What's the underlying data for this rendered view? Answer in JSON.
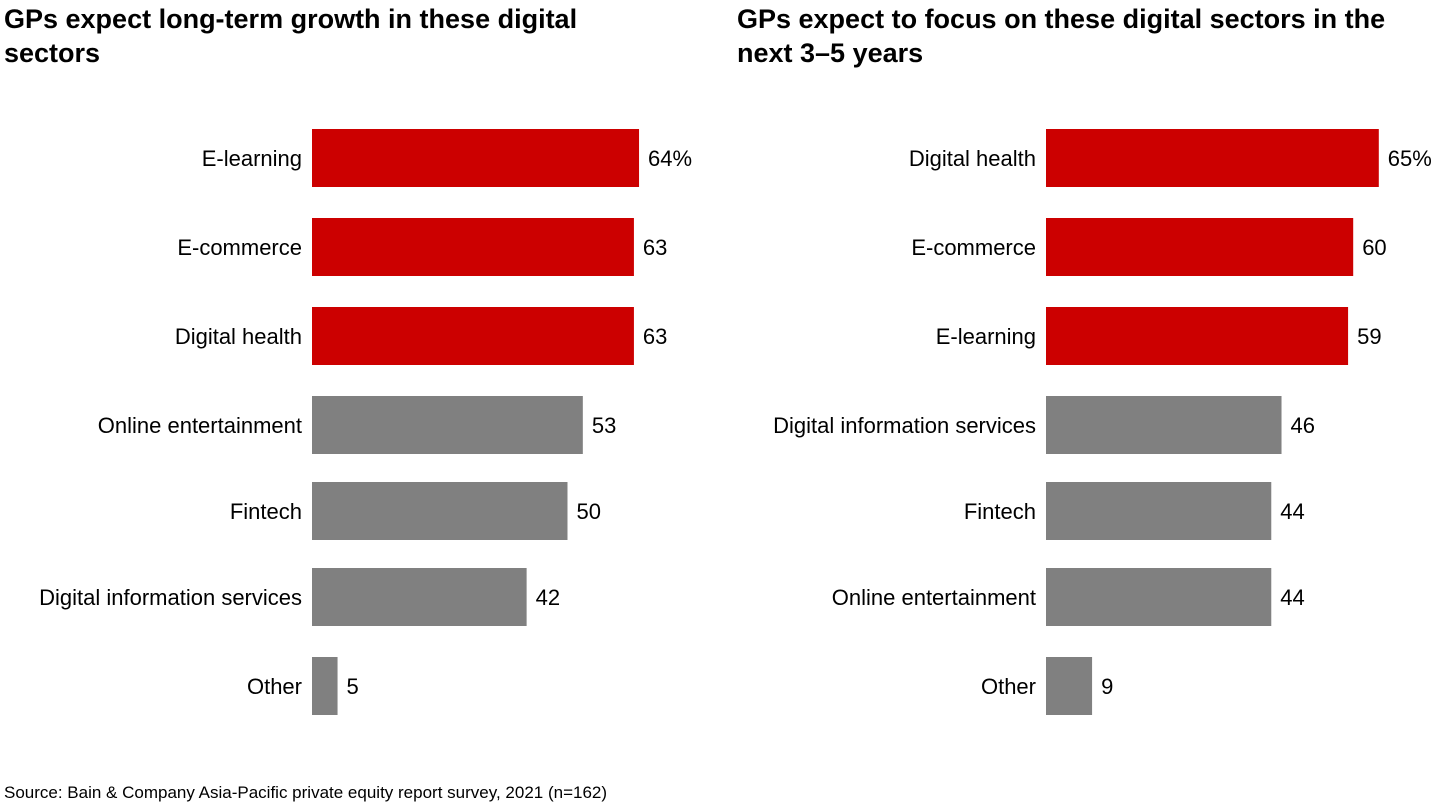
{
  "source": "Source: Bain & Company Asia-Pacific private equity report survey, 2021 (n=162)",
  "colors": {
    "highlight": "#cc0000",
    "other": "#808080"
  },
  "chart_data": [
    {
      "type": "bar",
      "orientation": "horizontal",
      "title": "GPs expect long-term growth in these digital sectors",
      "categories": [
        "E-learning",
        "E-commerce",
        "Digital health",
        "Online entertainment",
        "Fintech",
        "Digital information services",
        "Other"
      ],
      "values": [
        64,
        63,
        63,
        53,
        50,
        42,
        5
      ],
      "value_labels": [
        "64%",
        "63",
        "63",
        "53",
        "50",
        "42",
        "5"
      ],
      "highlighted": [
        true,
        true,
        true,
        false,
        false,
        false,
        false
      ],
      "unit": "%",
      "xlabel": "",
      "ylabel": "",
      "xlim": [
        0,
        100
      ],
      "grid": false,
      "legend": "none"
    },
    {
      "type": "bar",
      "orientation": "horizontal",
      "title": "GPs expect to focus on these digital sectors in the next 3–5 years",
      "categories": [
        "Digital health",
        "E-commerce",
        "E-learning",
        "Digital information services",
        "Fintech",
        "Online entertainment",
        "Other"
      ],
      "values": [
        65,
        60,
        59,
        46,
        44,
        44,
        9
      ],
      "value_labels": [
        "65%",
        "60",
        "59",
        "46",
        "44",
        "44",
        "9"
      ],
      "highlighted": [
        true,
        true,
        true,
        false,
        false,
        false,
        false
      ],
      "unit": "%",
      "xlabel": "",
      "ylabel": "",
      "xlim": [
        0,
        100
      ],
      "grid": false,
      "legend": "none"
    }
  ]
}
